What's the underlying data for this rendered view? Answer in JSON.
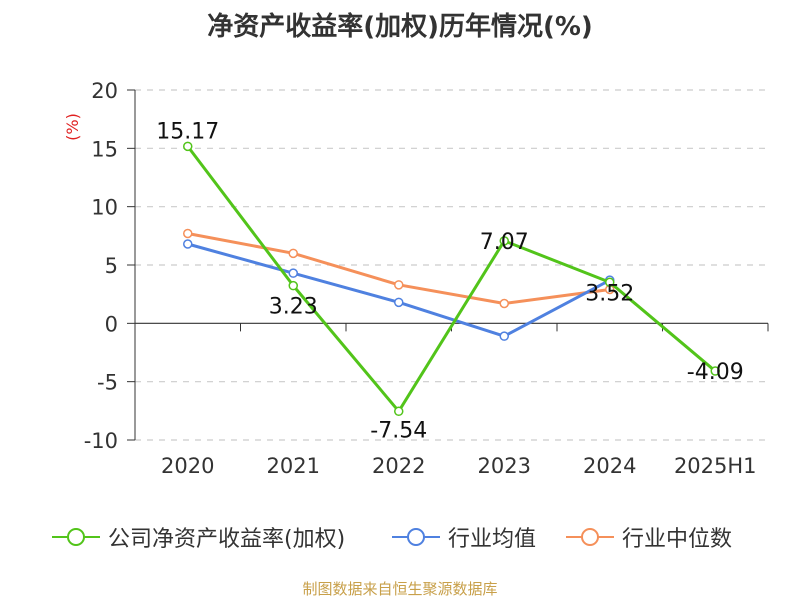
{
  "chart_data": {
    "type": "line",
    "title": "净资产收益率(加权)历年情况(%)",
    "ylabel": "(%)",
    "categories": [
      "2020",
      "2021",
      "2022",
      "2023",
      "2024",
      "2025H1"
    ],
    "yticks": [
      "20",
      "15",
      "10",
      "5",
      "0",
      "-5",
      "-10"
    ],
    "ylim": [
      -10,
      20
    ],
    "grid": true,
    "legend_position": "bottom",
    "series": [
      {
        "name": "公司净资产收益率(加权)",
        "color": "#52c41a",
        "values": [
          15.17,
          3.23,
          -7.54,
          7.07,
          3.52,
          -4.09
        ],
        "labels": [
          "15.17",
          "3.23",
          "-7.54",
          "7.07",
          "3.52",
          "-4.09"
        ]
      },
      {
        "name": "行业均值",
        "color": "#4f81e0",
        "values": [
          6.8,
          4.3,
          1.8,
          -1.1,
          3.7,
          null
        ]
      },
      {
        "name": "行业中位数",
        "color": "#f5905a",
        "values": [
          7.7,
          6.0,
          3.3,
          1.7,
          2.9,
          null
        ]
      }
    ],
    "source": "制图数据来自恒生聚源数据库"
  }
}
